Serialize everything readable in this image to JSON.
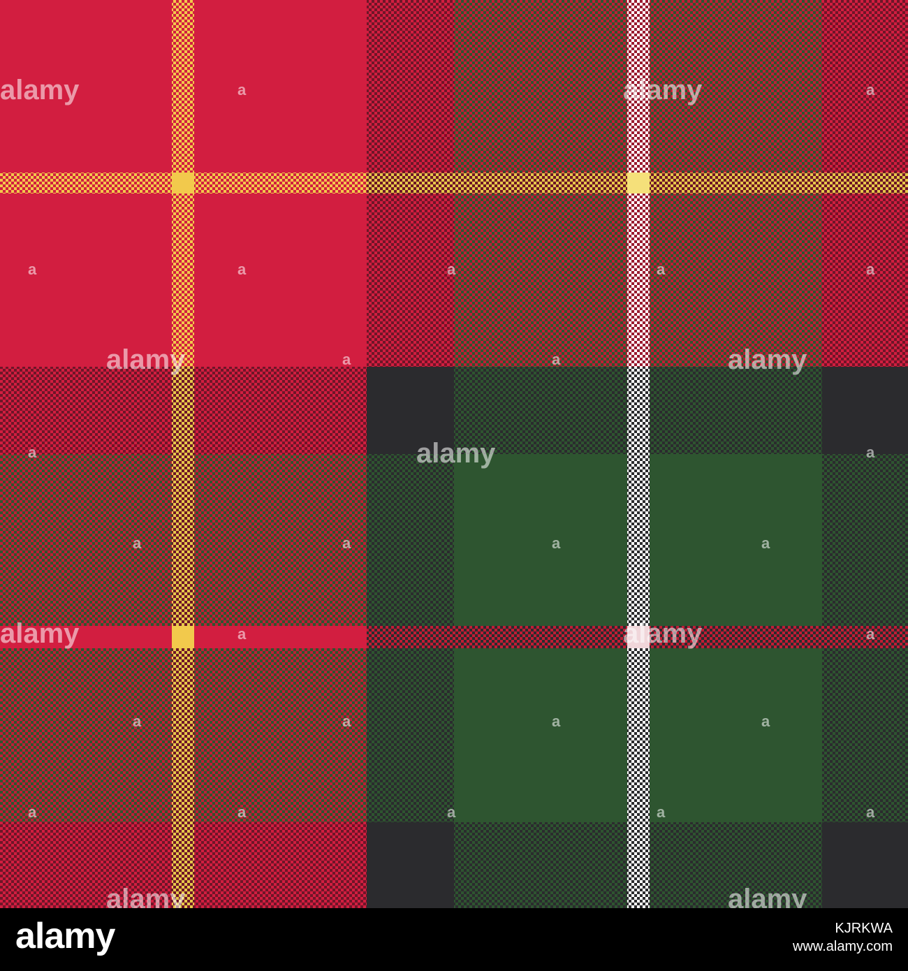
{
  "image": {
    "subject": "tartan plaid pattern set",
    "panels": [
      {
        "name": "red-yellow-tartan",
        "base_color": "#d21e40",
        "stripe_color": "#f2c94c"
      },
      {
        "name": "red-white-tartan",
        "base_color": "#b01a2e",
        "stripe_color": "#ffffff"
      },
      {
        "name": "red-green-yellow-tartan",
        "base_color": "#a4222b",
        "stripe_color": "#e6c84a"
      },
      {
        "name": "green-white-tartan",
        "base_color": "#2e5530",
        "stripe_color": "#ffffff"
      }
    ],
    "colors": {
      "red": "#d21e40",
      "dark_red": "#8e1c2c",
      "green": "#2e5530",
      "charcoal": "#2b2b2e",
      "yellow": "#f2c94c",
      "white": "#ffffff"
    }
  },
  "watermark": {
    "text": "alamy",
    "small_text": "a"
  },
  "footer": {
    "logo": "alamy",
    "image_id": "KJRKWA",
    "site": "www.alamy.com"
  }
}
